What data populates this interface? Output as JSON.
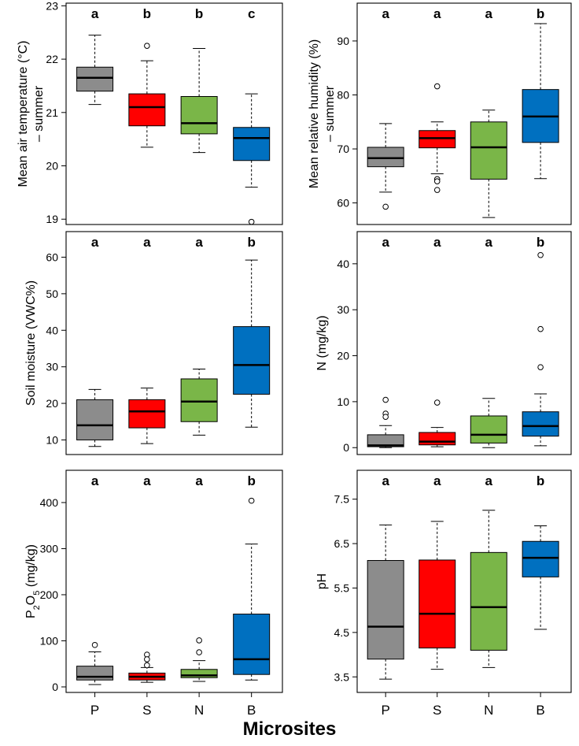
{
  "chart_data": [
    {
      "type": "boxplot",
      "ylabel_lines": [
        "Mean air temperature (°C)",
        "– summer"
      ],
      "categories": [
        "P",
        "S",
        "N",
        "B"
      ],
      "colors": [
        "#8c8c8c",
        "#ff0000",
        "#7ab648",
        "#0070c0"
      ],
      "letters": [
        "a",
        "b",
        "b",
        "c"
      ],
      "ylim": [
        18.9,
        23.05
      ],
      "yticks": [
        19,
        20,
        21,
        22,
        23
      ],
      "yticklabels": [
        "19",
        "20",
        "21",
        "22",
        "23"
      ],
      "boxes": [
        {
          "whislo": 21.15,
          "q1": 21.4,
          "med": 21.65,
          "q3": 21.85,
          "whishi": 22.45,
          "fliers": []
        },
        {
          "whislo": 20.35,
          "q1": 20.75,
          "med": 21.1,
          "q3": 21.35,
          "whishi": 21.97,
          "fliers": [
            22.25
          ]
        },
        {
          "whislo": 20.25,
          "q1": 20.6,
          "med": 20.8,
          "q3": 21.3,
          "whishi": 22.2,
          "fliers": []
        },
        {
          "whislo": 19.6,
          "q1": 20.1,
          "med": 20.52,
          "q3": 20.72,
          "whishi": 21.35,
          "fliers": [
            18.95
          ]
        }
      ]
    },
    {
      "type": "boxplot",
      "ylabel_lines": [
        "Mean relative humidity (%)",
        "– summer"
      ],
      "categories": [
        "P",
        "S",
        "N",
        "B"
      ],
      "colors": [
        "#8c8c8c",
        "#ff0000",
        "#7ab648",
        "#0070c0"
      ],
      "letters": [
        "a",
        "a",
        "a",
        "b"
      ],
      "ylim": [
        56,
        97
      ],
      "yticks": [
        60,
        70,
        80,
        90
      ],
      "yticklabels": [
        "60",
        "70",
        "80",
        "90"
      ],
      "boxes": [
        {
          "whislo": 62,
          "q1": 66.7,
          "med": 68.3,
          "q3": 70.3,
          "whishi": 74.7,
          "fliers": [
            59.3
          ]
        },
        {
          "whislo": 65.4,
          "q1": 70.2,
          "med": 72,
          "q3": 73.4,
          "whishi": 75,
          "fliers": [
            81.6,
            64.4,
            64,
            62.4
          ]
        },
        {
          "whislo": 57.3,
          "q1": 64.4,
          "med": 70.3,
          "q3": 75,
          "whishi": 77.2,
          "fliers": []
        },
        {
          "whislo": 64.5,
          "q1": 71.2,
          "med": 76,
          "q3": 81,
          "whishi": 93.2,
          "fliers": []
        }
      ]
    },
    {
      "type": "boxplot",
      "ylabel_lines": [
        "Soil moisture (VWC%)"
      ],
      "categories": [
        "P",
        "S",
        "N",
        "B"
      ],
      "colors": [
        "#8c8c8c",
        "#ff0000",
        "#7ab648",
        "#0070c0"
      ],
      "letters": [
        "a",
        "a",
        "a",
        "b"
      ],
      "ylim": [
        6,
        67
      ],
      "yticks": [
        10,
        20,
        30,
        40,
        50,
        60
      ],
      "yticklabels": [
        "10",
        "20",
        "30",
        "40",
        "50",
        "60"
      ],
      "boxes": [
        {
          "whislo": 8.2,
          "q1": 10,
          "med": 14,
          "q3": 21,
          "whishi": 23.8,
          "fliers": []
        },
        {
          "whislo": 9,
          "q1": 13.3,
          "med": 17.8,
          "q3": 21,
          "whishi": 24.2,
          "fliers": []
        },
        {
          "whislo": 11.3,
          "q1": 15,
          "med": 20.5,
          "q3": 26.7,
          "whishi": 29.4,
          "fliers": []
        },
        {
          "whislo": 13.5,
          "q1": 22.5,
          "med": 30.5,
          "q3": 41,
          "whishi": 59.2,
          "fliers": []
        }
      ]
    },
    {
      "type": "boxplot",
      "ylabel_lines": [
        "N (mg/kg)"
      ],
      "categories": [
        "P",
        "S",
        "N",
        "B"
      ],
      "colors": [
        "#8c8c8c",
        "#ff0000",
        "#7ab648",
        "#0070c0"
      ],
      "letters": [
        "a",
        "a",
        "a",
        "b"
      ],
      "ylim": [
        -1.5,
        47
      ],
      "yticks": [
        0,
        10,
        20,
        30,
        40
      ],
      "yticklabels": [
        "0",
        "10",
        "20",
        "30",
        "40"
      ],
      "boxes": [
        {
          "whislo": 0,
          "q1": 0.2,
          "med": 0.5,
          "q3": 2.8,
          "whishi": 4.8,
          "fliers": [
            10.4,
            7.4,
            6.7
          ]
        },
        {
          "whislo": 0.2,
          "q1": 0.6,
          "med": 1.3,
          "q3": 3.3,
          "whishi": 4.4,
          "fliers": [
            9.8
          ]
        },
        {
          "whislo": 0,
          "q1": 1,
          "med": 2.8,
          "q3": 6.9,
          "whishi": 10.7,
          "fliers": []
        },
        {
          "whislo": 0.4,
          "q1": 2.5,
          "med": 4.7,
          "q3": 7.8,
          "whishi": 11.7,
          "fliers": [
            41.9,
            25.8,
            17.5
          ]
        }
      ]
    },
    {
      "type": "boxplot",
      "ylabel_lines": [
        "P2O5 (mg/kg)"
      ],
      "ylabel_parts": [
        [
          "P",
          ""
        ],
        [
          "2",
          "sub"
        ],
        [
          "O",
          ""
        ],
        [
          "5",
          "sub"
        ],
        [
          " (mg/kg)",
          ""
        ]
      ],
      "categories": [
        "P",
        "S",
        "N",
        "B"
      ],
      "colors": [
        "#8c8c8c",
        "#ff0000",
        "#7ab648",
        "#0070c0"
      ],
      "letters": [
        "a",
        "a",
        "a",
        "b"
      ],
      "ylim": [
        -12,
        470
      ],
      "yticks": [
        0,
        100,
        200,
        300,
        400
      ],
      "yticklabels": [
        "0",
        "100",
        "200",
        "300",
        "400"
      ],
      "boxes": [
        {
          "whislo": 5,
          "q1": 15,
          "med": 22,
          "q3": 45,
          "whishi": 76,
          "fliers": [
            91
          ]
        },
        {
          "whislo": 10,
          "q1": 15,
          "med": 22,
          "q3": 30,
          "whishi": 42,
          "fliers": [
            70,
            60,
            47
          ]
        },
        {
          "whislo": 12,
          "q1": 20,
          "med": 25,
          "q3": 38,
          "whishi": 57,
          "fliers": [
            101,
            75
          ]
        },
        {
          "whislo": 15,
          "q1": 27,
          "med": 60,
          "q3": 158,
          "whishi": 310,
          "fliers": [
            404
          ]
        }
      ]
    },
    {
      "type": "boxplot",
      "ylabel_lines": [
        "pH"
      ],
      "categories": [
        "P",
        "S",
        "N",
        "B"
      ],
      "colors": [
        "#8c8c8c",
        "#ff0000",
        "#7ab648",
        "#0070c0"
      ],
      "letters": [
        "a",
        "a",
        "a",
        "b"
      ],
      "ylim": [
        3.15,
        8.15
      ],
      "yticks": [
        3.5,
        4.5,
        5.5,
        6.5,
        7.5
      ],
      "yticklabels": [
        "3.5",
        "4.5",
        "5.5",
        "6.5",
        "7.5"
      ],
      "boxes": [
        {
          "whislo": 3.45,
          "q1": 3.9,
          "med": 4.63,
          "q3": 6.12,
          "whishi": 6.92,
          "fliers": []
        },
        {
          "whislo": 3.67,
          "q1": 4.15,
          "med": 4.92,
          "q3": 6.13,
          "whishi": 7,
          "fliers": []
        },
        {
          "whislo": 3.71,
          "q1": 4.1,
          "med": 5.07,
          "q3": 6.3,
          "whishi": 7.25,
          "fliers": []
        },
        {
          "whislo": 4.57,
          "q1": 5.75,
          "med": 6.18,
          "q3": 6.55,
          "whishi": 6.9,
          "fliers": []
        }
      ]
    }
  ],
  "x_axis_label": "Microsites"
}
